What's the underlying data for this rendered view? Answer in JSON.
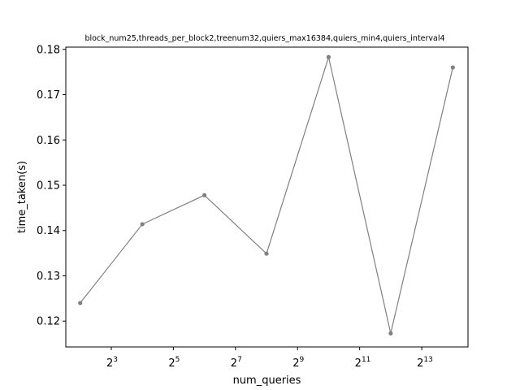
{
  "chart_data": {
    "type": "line",
    "title": "block_num25,threads_per_block2,treenum32,quiers_max16384,quiers_min4,quiers_interval4",
    "xlabel": "num_queries",
    "ylabel": "time_taken(s)",
    "x_scale": "log2",
    "x": [
      4,
      16,
      64,
      256,
      1024,
      4096,
      16384
    ],
    "series": [
      {
        "values": [
          0.124,
          0.1414,
          0.1478,
          0.1349,
          0.1783,
          0.1173,
          0.176
        ]
      }
    ],
    "xlim": [
      2.9,
      23000
    ],
    "ylim": [
      0.1143,
      0.1805
    ],
    "x_ticks": [
      {
        "value": 8,
        "base": "2",
        "exp": "3"
      },
      {
        "value": 32,
        "base": "2",
        "exp": "5"
      },
      {
        "value": 128,
        "base": "2",
        "exp": "7"
      },
      {
        "value": 512,
        "base": "2",
        "exp": "9"
      },
      {
        "value": 2048,
        "base": "2",
        "exp": "11"
      },
      {
        "value": 8192,
        "base": "2",
        "exp": "13"
      }
    ],
    "y_ticks": [
      {
        "value": 0.12,
        "label": "0.12"
      },
      {
        "value": 0.13,
        "label": "0.13"
      },
      {
        "value": 0.14,
        "label": "0.14"
      },
      {
        "value": 0.15,
        "label": "0.15"
      },
      {
        "value": 0.16,
        "label": "0.16"
      },
      {
        "value": 0.17,
        "label": "0.17"
      },
      {
        "value": 0.18,
        "label": "0.18"
      }
    ],
    "grid": false,
    "legend": "none",
    "line_color": "#808080",
    "marker_color": "#808080"
  }
}
